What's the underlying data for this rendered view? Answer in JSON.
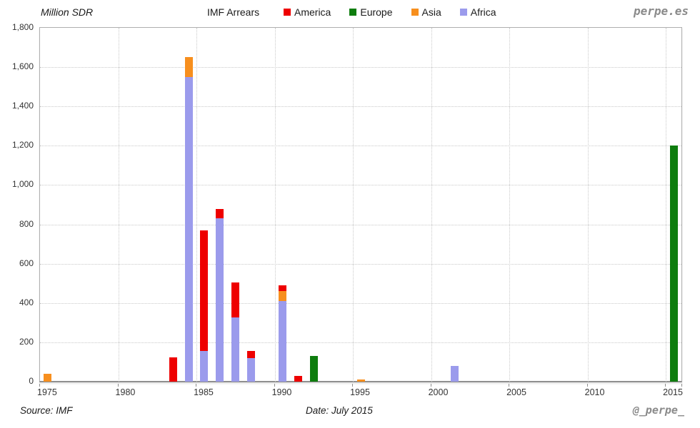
{
  "header": {
    "y_axis_title": "Million SDR",
    "chart_title": "IMF Arrears",
    "brand": "perpe.es"
  },
  "footer": {
    "source": "Source: IMF",
    "date": "Date: July 2015",
    "handle": "@_perpe_"
  },
  "colors": {
    "america": "#ee0000",
    "europe": "#0e7d0e",
    "asia": "#f78f1e",
    "africa": "#9b9bec",
    "grid": "#c9c9c9",
    "axis": "#8f8f8f",
    "brand_gray": "#8a8a8a"
  },
  "chart_data": {
    "type": "bar",
    "stacked": true,
    "title": "IMF Arrears",
    "ylabel": "Million SDR",
    "xlabel": "",
    "ylim": [
      0,
      1800
    ],
    "ytick_step": 200,
    "x_range": [
      1975,
      2015
    ],
    "xticks": [
      1975,
      1980,
      1985,
      1990,
      1995,
      2000,
      2005,
      2010,
      2015
    ],
    "grid": "dotted",
    "legend_position": "top",
    "stack_order": [
      "Africa",
      "Asia",
      "Europe",
      "America"
    ],
    "series": [
      {
        "name": "America",
        "color": "#ee0000",
        "points": {
          "1983": 125,
          "1985": 615,
          "1986": 50,
          "1987": 180,
          "1988": 35,
          "1990": 30,
          "1991": 30
        }
      },
      {
        "name": "Europe",
        "color": "#0e7d0e",
        "points": {
          "1992": 130,
          "2015": 1200
        }
      },
      {
        "name": "Asia",
        "color": "#f78f1e",
        "points": {
          "1975": 40,
          "1984": 100,
          "1990": 50,
          "1995": 10
        }
      },
      {
        "name": "Africa",
        "color": "#9b9bec",
        "points": {
          "1984": 1550,
          "1985": 155,
          "1986": 830,
          "1987": 325,
          "1988": 120,
          "1990": 410,
          "2001": 80
        }
      }
    ]
  }
}
